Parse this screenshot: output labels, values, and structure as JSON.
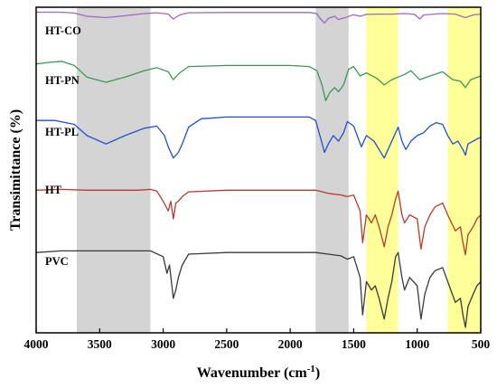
{
  "chart_data": {
    "type": "line",
    "xlabel": "Wavenumber (cm",
    "xlabel_sup": "-1",
    "xlabel_close": ")",
    "ylabel": "Transimittance (%)",
    "xlim": [
      4000,
      500
    ],
    "x_reversed": true,
    "y_ticks_shown": false,
    "xticks": [
      4000,
      3500,
      3000,
      2500,
      2000,
      1500,
      1000,
      500
    ],
    "highlight_bands": [
      {
        "from": 3680,
        "to": 3100,
        "color": "#d4d4d4"
      },
      {
        "from": 1800,
        "to": 1540,
        "color": "#d4d4d4"
      },
      {
        "from": 1400,
        "to": 1150,
        "color": "#ffff99"
      },
      {
        "from": 760,
        "to": 500,
        "color": "#ffff99"
      }
    ],
    "series": [
      {
        "name": "HT-CO",
        "color": "#a066c8",
        "points": [
          [
            4000,
            0.95
          ],
          [
            3800,
            0.95
          ],
          [
            3700,
            0.92
          ],
          [
            3600,
            0.8
          ],
          [
            3450,
            0.75
          ],
          [
            3300,
            0.82
          ],
          [
            3150,
            0.9
          ],
          [
            3050,
            0.93
          ],
          [
            2960,
            0.88
          ],
          [
            2920,
            0.7
          ],
          [
            2870,
            0.85
          ],
          [
            2800,
            0.93
          ],
          [
            2500,
            0.94
          ],
          [
            2200,
            0.94
          ],
          [
            2000,
            0.94
          ],
          [
            1850,
            0.94
          ],
          [
            1790,
            0.9
          ],
          [
            1770,
            0.75
          ],
          [
            1730,
            0.55
          ],
          [
            1700,
            0.72
          ],
          [
            1650,
            0.8
          ],
          [
            1620,
            0.68
          ],
          [
            1560,
            0.76
          ],
          [
            1500,
            0.86
          ],
          [
            1450,
            0.8
          ],
          [
            1400,
            0.87
          ],
          [
            1300,
            0.88
          ],
          [
            1200,
            0.88
          ],
          [
            1100,
            0.9
          ],
          [
            1020,
            0.87
          ],
          [
            980,
            0.7
          ],
          [
            950,
            0.85
          ],
          [
            800,
            0.9
          ],
          [
            700,
            0.88
          ],
          [
            620,
            0.75
          ],
          [
            560,
            0.85
          ],
          [
            500,
            0.88
          ]
        ]
      },
      {
        "name": "HT-PN",
        "color": "#3a9a52",
        "points": [
          [
            4000,
            0.85
          ],
          [
            3900,
            0.88
          ],
          [
            3800,
            0.9
          ],
          [
            3700,
            0.82
          ],
          [
            3600,
            0.6
          ],
          [
            3450,
            0.5
          ],
          [
            3300,
            0.6
          ],
          [
            3150,
            0.72
          ],
          [
            3050,
            0.78
          ],
          [
            2960,
            0.7
          ],
          [
            2920,
            0.55
          ],
          [
            2870,
            0.68
          ],
          [
            2800,
            0.8
          ],
          [
            2500,
            0.82
          ],
          [
            2200,
            0.82
          ],
          [
            2000,
            0.82
          ],
          [
            1850,
            0.8
          ],
          [
            1790,
            0.72
          ],
          [
            1750,
            0.45
          ],
          [
            1720,
            0.15
          ],
          [
            1690,
            0.3
          ],
          [
            1650,
            0.4
          ],
          [
            1620,
            0.32
          ],
          [
            1580,
            0.45
          ],
          [
            1540,
            0.75
          ],
          [
            1500,
            0.8
          ],
          [
            1450,
            0.62
          ],
          [
            1400,
            0.68
          ],
          [
            1320,
            0.58
          ],
          [
            1260,
            0.45
          ],
          [
            1200,
            0.55
          ],
          [
            1150,
            0.6
          ],
          [
            1100,
            0.65
          ],
          [
            1050,
            0.72
          ],
          [
            980,
            0.55
          ],
          [
            900,
            0.62
          ],
          [
            800,
            0.7
          ],
          [
            720,
            0.55
          ],
          [
            660,
            0.52
          ],
          [
            620,
            0.4
          ],
          [
            580,
            0.55
          ],
          [
            500,
            0.62
          ]
        ]
      },
      {
        "name": "HT-PL",
        "color": "#1f4fd0",
        "points": [
          [
            4000,
            0.82
          ],
          [
            3850,
            0.82
          ],
          [
            3700,
            0.75
          ],
          [
            3600,
            0.55
          ],
          [
            3450,
            0.4
          ],
          [
            3300,
            0.55
          ],
          [
            3150,
            0.68
          ],
          [
            3050,
            0.72
          ],
          [
            2990,
            0.55
          ],
          [
            2960,
            0.35
          ],
          [
            2920,
            0.15
          ],
          [
            2880,
            0.25
          ],
          [
            2850,
            0.4
          ],
          [
            2800,
            0.7
          ],
          [
            2700,
            0.85
          ],
          [
            2500,
            0.88
          ],
          [
            2200,
            0.88
          ],
          [
            2000,
            0.88
          ],
          [
            1850,
            0.88
          ],
          [
            1800,
            0.82
          ],
          [
            1760,
            0.5
          ],
          [
            1730,
            0.25
          ],
          [
            1700,
            0.4
          ],
          [
            1660,
            0.55
          ],
          [
            1620,
            0.45
          ],
          [
            1580,
            0.6
          ],
          [
            1550,
            0.8
          ],
          [
            1500,
            0.72
          ],
          [
            1440,
            0.35
          ],
          [
            1400,
            0.55
          ],
          [
            1340,
            0.45
          ],
          [
            1260,
            0.15
          ],
          [
            1220,
            0.35
          ],
          [
            1180,
            0.55
          ],
          [
            1150,
            0.7
          ],
          [
            1120,
            0.45
          ],
          [
            1090,
            0.3
          ],
          [
            1050,
            0.45
          ],
          [
            1000,
            0.55
          ],
          [
            950,
            0.6
          ],
          [
            900,
            0.72
          ],
          [
            850,
            0.78
          ],
          [
            800,
            0.75
          ],
          [
            760,
            0.55
          ],
          [
            720,
            0.4
          ],
          [
            680,
            0.45
          ],
          [
            640,
            0.3
          ],
          [
            620,
            0.2
          ],
          [
            600,
            0.4
          ],
          [
            560,
            0.45
          ],
          [
            520,
            0.5
          ],
          [
            500,
            0.52
          ]
        ]
      },
      {
        "name": "HT",
        "color": "#b83a2e",
        "points": [
          [
            4000,
            0.86
          ],
          [
            3800,
            0.87
          ],
          [
            3600,
            0.86
          ],
          [
            3400,
            0.86
          ],
          [
            3200,
            0.86
          ],
          [
            3100,
            0.87
          ],
          [
            3050,
            0.85
          ],
          [
            3000,
            0.72
          ],
          [
            2960,
            0.6
          ],
          [
            2940,
            0.72
          ],
          [
            2920,
            0.5
          ],
          [
            2900,
            0.7
          ],
          [
            2880,
            0.72
          ],
          [
            2850,
            0.78
          ],
          [
            2800,
            0.84
          ],
          [
            2500,
            0.86
          ],
          [
            2200,
            0.86
          ],
          [
            2000,
            0.86
          ],
          [
            1800,
            0.86
          ],
          [
            1700,
            0.82
          ],
          [
            1600,
            0.8
          ],
          [
            1550,
            0.78
          ],
          [
            1500,
            0.8
          ],
          [
            1450,
            0.6
          ],
          [
            1430,
            0.2
          ],
          [
            1400,
            0.55
          ],
          [
            1360,
            0.45
          ],
          [
            1330,
            0.55
          ],
          [
            1300,
            0.4
          ],
          [
            1260,
            0.15
          ],
          [
            1230,
            0.4
          ],
          [
            1200,
            0.55
          ],
          [
            1170,
            0.75
          ],
          [
            1150,
            0.85
          ],
          [
            1120,
            0.55
          ],
          [
            1100,
            0.45
          ],
          [
            1060,
            0.55
          ],
          [
            1000,
            0.5
          ],
          [
            970,
            0.12
          ],
          [
            940,
            0.4
          ],
          [
            900,
            0.55
          ],
          [
            860,
            0.65
          ],
          [
            800,
            0.7
          ],
          [
            760,
            0.55
          ],
          [
            700,
            0.35
          ],
          [
            660,
            0.4
          ],
          [
            640,
            0.2
          ],
          [
            620,
            0.05
          ],
          [
            600,
            0.3
          ],
          [
            560,
            0.4
          ],
          [
            530,
            0.5
          ],
          [
            500,
            0.55
          ]
        ]
      },
      {
        "name": "PVC",
        "color": "#3a3a3a",
        "points": [
          [
            4000,
            0.9
          ],
          [
            3800,
            0.92
          ],
          [
            3600,
            0.92
          ],
          [
            3400,
            0.92
          ],
          [
            3200,
            0.92
          ],
          [
            3100,
            0.92
          ],
          [
            3000,
            0.85
          ],
          [
            2970,
            0.65
          ],
          [
            2950,
            0.75
          ],
          [
            2920,
            0.35
          ],
          [
            2900,
            0.45
          ],
          [
            2880,
            0.6
          ],
          [
            2850,
            0.75
          ],
          [
            2800,
            0.88
          ],
          [
            2500,
            0.9
          ],
          [
            2200,
            0.9
          ],
          [
            2000,
            0.9
          ],
          [
            1800,
            0.9
          ],
          [
            1700,
            0.88
          ],
          [
            1600,
            0.86
          ],
          [
            1550,
            0.82
          ],
          [
            1500,
            0.85
          ],
          [
            1450,
            0.6
          ],
          [
            1430,
            0.15
          ],
          [
            1400,
            0.55
          ],
          [
            1360,
            0.45
          ],
          [
            1330,
            0.5
          ],
          [
            1300,
            0.35
          ],
          [
            1260,
            0.1
          ],
          [
            1230,
            0.35
          ],
          [
            1200,
            0.55
          ],
          [
            1170,
            0.85
          ],
          [
            1150,
            0.9
          ],
          [
            1120,
            0.6
          ],
          [
            1100,
            0.45
          ],
          [
            1060,
            0.6
          ],
          [
            1000,
            0.5
          ],
          [
            970,
            0.1
          ],
          [
            940,
            0.4
          ],
          [
            900,
            0.6
          ],
          [
            860,
            0.68
          ],
          [
            800,
            0.72
          ],
          [
            760,
            0.55
          ],
          [
            700,
            0.3
          ],
          [
            660,
            0.35
          ],
          [
            640,
            0.15
          ],
          [
            620,
            0.0
          ],
          [
            600,
            0.25
          ],
          [
            560,
            0.4
          ],
          [
            530,
            0.5
          ],
          [
            500,
            0.55
          ]
        ]
      }
    ]
  }
}
